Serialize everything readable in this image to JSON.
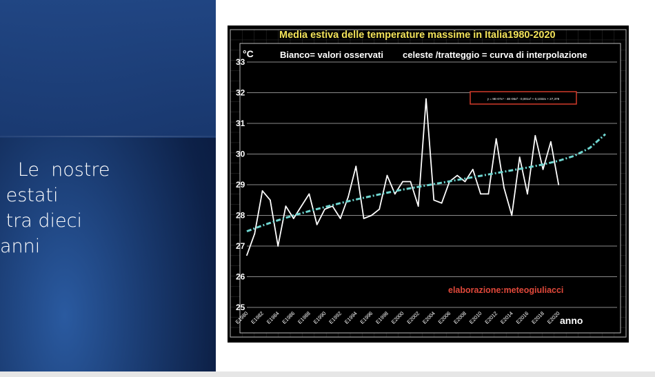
{
  "slide": {
    "lines": [
      "   Le  nostre",
      " estati",
      " tra dieci",
      "anni"
    ]
  },
  "colors": {
    "panel_bg": "#1b3d74",
    "chart_bg": "#000000",
    "title_color": "#f2e25a",
    "observed_line": "#ffffff",
    "trend_line": "#6fd6d0",
    "equation_box_border": "#d33a2a",
    "credit_color": "#e0483a"
  },
  "chart_data": {
    "type": "line",
    "title": "Media estiva delle temperature massime in Italia1980-2020",
    "subtitle_left": "Bianco= valori osservati",
    "subtitle_right": "celeste /tratteggio = curva di interpolazione",
    "ylabel": "°C",
    "xlabel": "anno",
    "ylim": [
      25,
      33
    ],
    "yticks": [
      25,
      26,
      27,
      28,
      29,
      30,
      31,
      32,
      33
    ],
    "xtick_labels": [
      "E1980",
      "E1982",
      "E1984",
      "E1986",
      "E1988",
      "E1990",
      "E1992",
      "E1994",
      "E1996",
      "E1998",
      "E2000",
      "E2002",
      "E2004",
      "E2006",
      "E2008",
      "E2010",
      "E2012",
      "E2014",
      "E2016",
      "E2018",
      "E2020"
    ],
    "grid": true,
    "equation": "y = 9E-07x⁴ - 4E-05x³ - 0,001x² + 0,1032x + 27,378",
    "annotation": "elaborazione:meteogiuliacci",
    "series": [
      {
        "name": "Bianco= valori osservati",
        "style": "solid",
        "x": [
          1980,
          1981,
          1982,
          1983,
          1984,
          1985,
          1986,
          1987,
          1988,
          1989,
          1990,
          1991,
          1992,
          1993,
          1994,
          1995,
          1996,
          1997,
          1998,
          1999,
          2000,
          2001,
          2002,
          2003,
          2004,
          2005,
          2006,
          2007,
          2008,
          2009,
          2010,
          2011,
          2012,
          2013,
          2014,
          2015,
          2016,
          2017,
          2018,
          2019,
          2020
        ],
        "values": [
          26.7,
          27.4,
          28.8,
          28.5,
          27.0,
          28.3,
          27.9,
          28.3,
          28.7,
          27.7,
          28.2,
          28.3,
          27.9,
          28.6,
          29.6,
          27.9,
          28.0,
          28.2,
          29.3,
          28.7,
          29.1,
          29.1,
          28.3,
          31.8,
          28.5,
          28.4,
          29.1,
          29.3,
          29.1,
          29.5,
          28.7,
          28.7,
          30.5,
          28.9,
          28.0,
          29.9,
          28.7,
          30.6,
          29.5,
          30.4,
          29.0
        ]
      },
      {
        "name": "celeste /tratteggio = curva di interpolazione",
        "style": "dashed",
        "x": [
          1980,
          1982,
          1984,
          1986,
          1988,
          1990,
          1992,
          1994,
          1996,
          1998,
          2000,
          2002,
          2004,
          2006,
          2008,
          2010,
          2012,
          2014,
          2016,
          2018,
          2020,
          2022,
          2024,
          2026
        ],
        "values": [
          27.48,
          27.67,
          27.84,
          28.0,
          28.14,
          28.27,
          28.4,
          28.52,
          28.63,
          28.74,
          28.84,
          28.93,
          29.02,
          29.11,
          29.2,
          29.29,
          29.38,
          29.47,
          29.56,
          29.66,
          29.78,
          29.94,
          30.2,
          30.65
        ]
      }
    ]
  }
}
